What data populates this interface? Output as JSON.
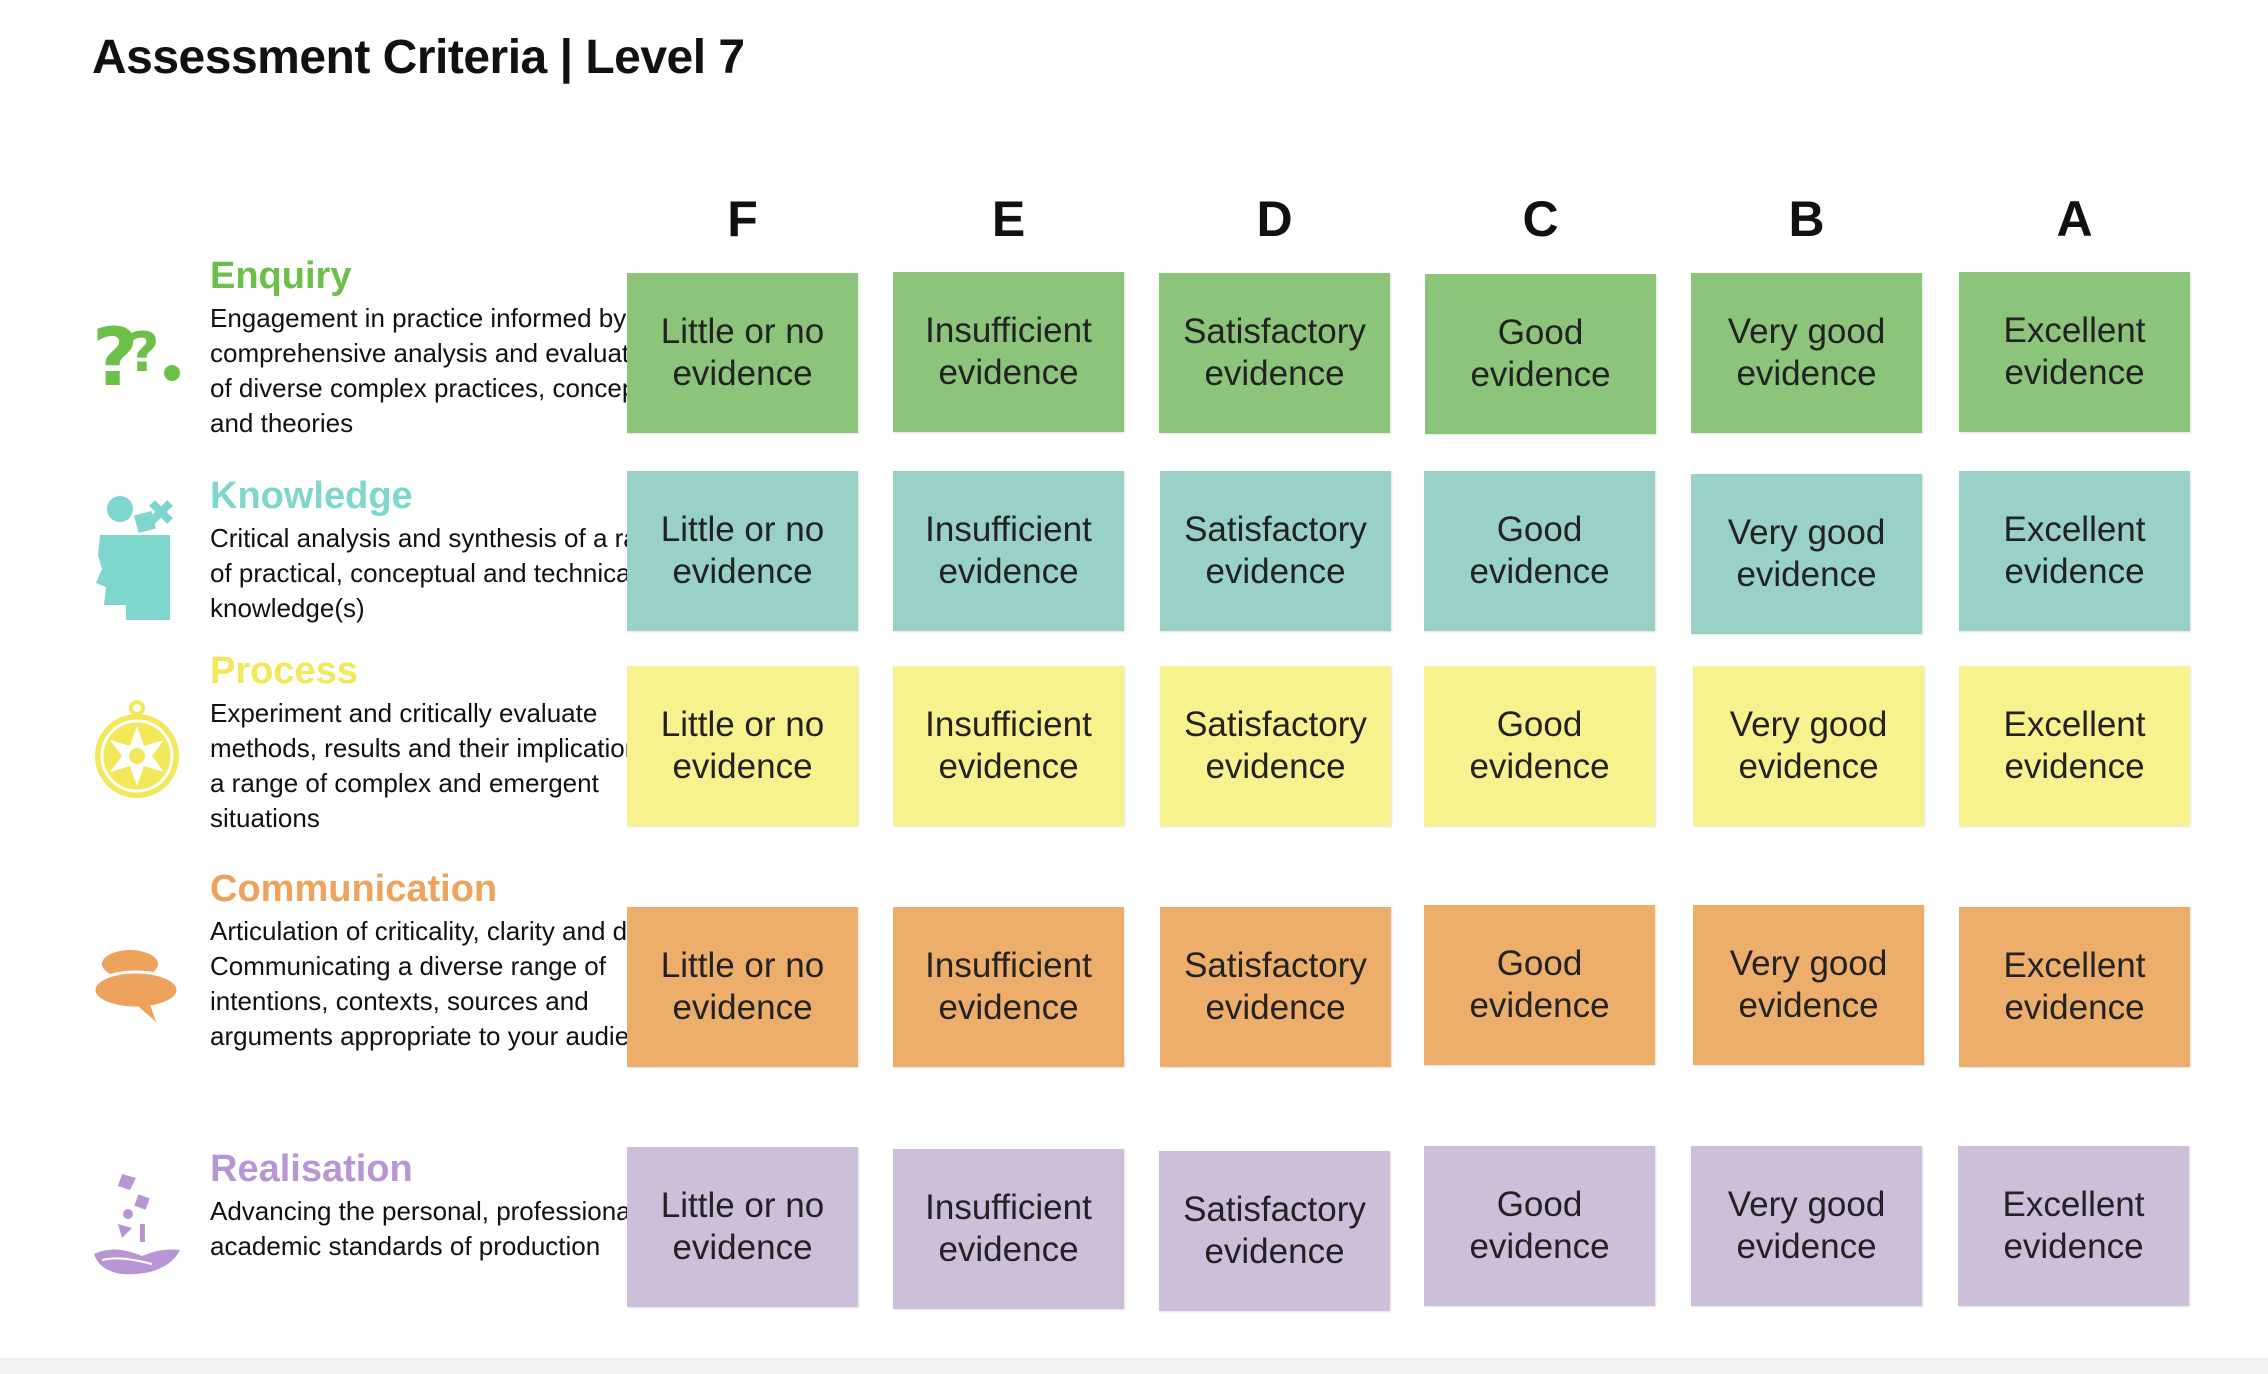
{
  "title": "Assessment Criteria | Level 7",
  "grades": [
    "F",
    "E",
    "D",
    "C",
    "B",
    "A"
  ],
  "criteria": [
    {
      "name": "Enquiry",
      "color": "#6cc04a",
      "cell_color": "#8bc47a",
      "icon": "question-marks-icon",
      "description": "Engagement in practice informed by comprehensive analysis and evaluation of diverse complex practices, concepts and theories",
      "levels": [
        "Little or no evidence",
        "Insufficient evidence",
        "Satisfactory evidence",
        "Good evidence",
        "Very good evidence",
        "Excellent evidence"
      ]
    },
    {
      "name": "Knowledge",
      "color": "#7fd6cf",
      "cell_color": "#99d0c8",
      "icon": "head-shapes-icon",
      "description": "Critical analysis and synthesis of a range of practical, conceptual and technical knowledge(s)",
      "levels": [
        "Little or no evidence",
        "Insufficient evidence",
        "Satisfactory evidence",
        "Good evidence",
        "Very good evidence",
        "Excellent evidence"
      ]
    },
    {
      "name": "Process",
      "color": "#f3e85a",
      "cell_color": "#f7f18e",
      "icon": "compass-icon",
      "description": "Experiment and critically evaluate methods, results and their implications in a range of complex and emergent situations",
      "levels": [
        "Little or no evidence",
        "Insufficient evidence",
        "Satisfactory evidence",
        "Good evidence",
        "Very good evidence",
        "Excellent evidence"
      ]
    },
    {
      "name": "Communication",
      "color": "#eea35c",
      "cell_color": "#edae6c",
      "icon": "speech-bubbles-icon",
      "description": "Articulation of criticality, clarity and depth. Communicating a diverse range of intentions, contexts, sources and arguments appropriate to your audiences",
      "levels": [
        "Little or no evidence",
        "Insufficient evidence",
        "Satisfactory evidence",
        "Good evidence",
        "Very good evidence",
        "Excellent evidence"
      ]
    },
    {
      "name": "Realisation",
      "color": "#b995d6",
      "cell_color": "#cdbed9",
      "icon": "hand-shapes-icon",
      "description": "Advancing the personal, professional and academic standards of production",
      "levels": [
        "Little or no evidence",
        "Insufficient evidence",
        "Satisfactory evidence",
        "Good evidence",
        "Very good evidence",
        "Excellent evidence"
      ]
    }
  ]
}
